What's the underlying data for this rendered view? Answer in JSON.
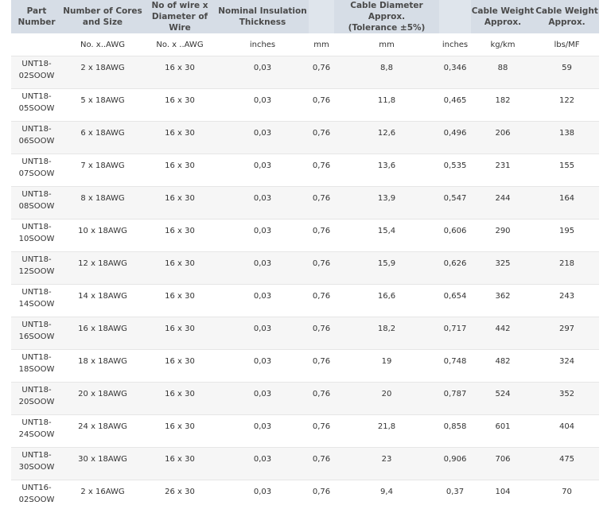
{
  "headers": [
    "Part\nNumber",
    "Number of Cores\nand Size",
    "No of wire x\nDiameter of Wire",
    "Nominal Insulation\nThickness",
    "",
    "Cable Diameter Approx.\n(Tolerance ±5%)",
    "",
    "Cable Weight\nApprox.",
    "Cable Weight\nApprox."
  ],
  "units": [
    "",
    "No. x..AWG",
    "No. x ..AWG",
    "inches",
    "mm",
    "mm",
    "inches",
    "kg/km",
    "lbs/MF"
  ],
  "rows": [
    [
      "UNT18-\n02SOOW",
      "2 x 18AWG",
      "16 x 30",
      "0,03",
      "0,76",
      "8,8",
      "0,346",
      "88",
      "59"
    ],
    [
      "UNT18-\n05SOOW",
      "5 x 18AWG",
      "16 x 30",
      "0,03",
      "0,76",
      "11,8",
      "0,465",
      "182",
      "122"
    ],
    [
      "UNT18-\n06SOOW",
      "6 x 18AWG",
      "16 x 30",
      "0,03",
      "0,76",
      "12,6",
      "0,496",
      "206",
      "138"
    ],
    [
      "UNT18-\n07SOOW",
      "7 x 18AWG",
      "16 x 30",
      "0,03",
      "0,76",
      "13,6",
      "0,535",
      "231",
      "155"
    ],
    [
      "UNT18-\n08SOOW",
      "8 x 18AWG",
      "16 x 30",
      "0,03",
      "0,76",
      "13,9",
      "0,547",
      "244",
      "164"
    ],
    [
      "UNT18-\n10SOOW",
      "10 x 18AWG",
      "16 x 30",
      "0,03",
      "0,76",
      "15,4",
      "0,606",
      "290",
      "195"
    ],
    [
      "UNT18-\n12SOOW",
      "12 x 18AWG",
      "16 x 30",
      "0,03",
      "0,76",
      "15,9",
      "0,626",
      "325",
      "218"
    ],
    [
      "UNT18-\n14SOOW",
      "14 x 18AWG",
      "16 x 30",
      "0,03",
      "0,76",
      "16,6",
      "0,654",
      "362",
      "243"
    ],
    [
      "UNT18-\n16SOOW",
      "16 x 18AWG",
      "16 x 30",
      "0,03",
      "0,76",
      "18,2",
      "0,717",
      "442",
      "297"
    ],
    [
      "UNT18-\n18SOOW",
      "18 x 18AWG",
      "16 x 30",
      "0,03",
      "0,76",
      "19",
      "0,748",
      "482",
      "324"
    ],
    [
      "UNT18-\n20SOOW",
      "20 x 18AWG",
      "16 x 30",
      "0,03",
      "0,76",
      "20",
      "0,787",
      "524",
      "352"
    ],
    [
      "UNT18-\n24SOOW",
      "24 x 18AWG",
      "16 x 30",
      "0,03",
      "0,76",
      "21,8",
      "0,858",
      "601",
      "404"
    ],
    [
      "UNT18-\n30SOOW",
      "30 x 18AWG",
      "16 x 30",
      "0,03",
      "0,76",
      "23",
      "0,906",
      "706",
      "475"
    ],
    [
      "UNT16-\n02SOOW",
      "2 x 16AWG",
      "26 x 30",
      "0,03",
      "0,76",
      "9,4",
      "0,37",
      "104",
      "70"
    ]
  ]
}
